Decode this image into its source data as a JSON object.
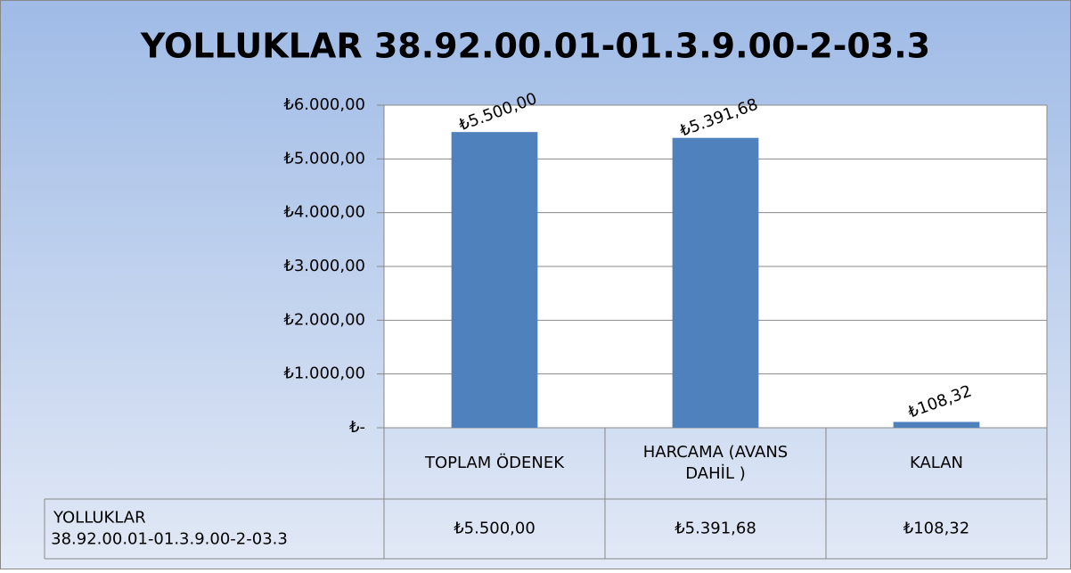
{
  "chart_data": {
    "type": "bar",
    "title": "YOLLUKLAR 38.92.00.01-01.3.9.00-2-03.3",
    "categories": [
      "TOPLAM ÖDENEK",
      "HARCAMA (AVANS DAHİL )",
      "KALAN"
    ],
    "series": [
      {
        "name": "YOLLUKLAR 38.92.00.01-01.3.9.00-2-03.3",
        "color": "#4f81bd",
        "values": [
          5500,
          5391.68,
          108.32
        ],
        "value_labels": [
          "₺5.500,00",
          "₺5.391,68",
          "₺108,32"
        ]
      }
    ],
    "ylim": [
      0,
      6000
    ],
    "yticks": [
      {
        "value": 0,
        "label": "₺-"
      },
      {
        "value": 1000,
        "label": "₺1.000,00"
      },
      {
        "value": 2000,
        "label": "₺2.000,00"
      },
      {
        "value": 3000,
        "label": "₺3.000,00"
      },
      {
        "value": 4000,
        "label": "₺4.000,00"
      },
      {
        "value": 5000,
        "label": "₺5.000,00"
      },
      {
        "value": 6000,
        "label": "₺6.000,00"
      }
    ],
    "grid": true
  }
}
